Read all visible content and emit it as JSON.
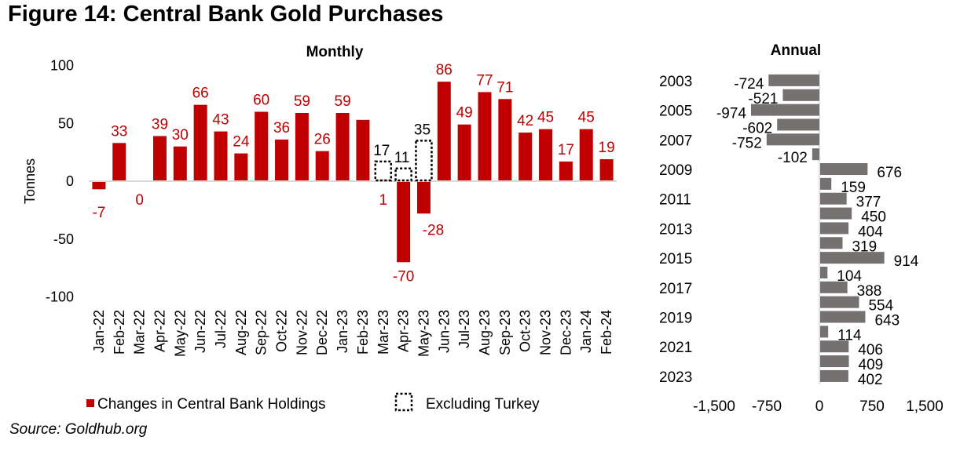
{
  "figure": {
    "title": "Figure 14: Central Bank Gold Purchases",
    "source": "Source: Goldhub.org"
  },
  "chart_data": [
    {
      "type": "bar",
      "title": "Monthly",
      "ylabel": "Tonnes",
      "xlabel": "",
      "ylim": [
        -100,
        100
      ],
      "yticks": [
        100,
        50,
        0,
        -50,
        -100
      ],
      "ytick_labels": [
        "100",
        "50",
        "0",
        "-50",
        "-100"
      ],
      "grid": false,
      "legend_position": "bottom",
      "categories": [
        "Jan-22",
        "Feb-22",
        "Mar-22",
        "Apr-22",
        "May-22",
        "Jun-22",
        "Jul-22",
        "Aug-22",
        "Sep-22",
        "Oct-22",
        "Nov-22",
        "Dec-22",
        "Jan-23",
        "Feb-23",
        "Mar-23",
        "Apr-23",
        "May-23",
        "Jun-23",
        "Jul-23",
        "Aug-23",
        "Sep-23",
        "Oct-23",
        "Nov-23",
        "Dec-23",
        "Jan-24",
        "Feb-24"
      ],
      "series": [
        {
          "name": "Changes in Central Bank Holdings",
          "color": "#c00000",
          "style": "solid",
          "values": [
            -7,
            33,
            0,
            39,
            30,
            66,
            43,
            24,
            60,
            36,
            59,
            26,
            59,
            53,
            1,
            -70,
            -28,
            86,
            49,
            77,
            71,
            42,
            45,
            17,
            45,
            19
          ],
          "data_labels": [
            "-7",
            "33",
            "0",
            "39",
            "30",
            "66",
            "43",
            "24",
            "60",
            "36",
            "59",
            "26",
            "59",
            "",
            "1",
            "-70",
            "-28",
            "86",
            "49",
            "77",
            "71",
            "42",
            "45",
            "17",
            "45",
            "19"
          ]
        },
        {
          "name": "Excluding Turkey",
          "color": "#000000",
          "style": "dotted-outline",
          "values": [
            null,
            null,
            null,
            null,
            null,
            null,
            null,
            null,
            null,
            null,
            null,
            null,
            null,
            null,
            17,
            11,
            35,
            null,
            null,
            null,
            null,
            null,
            null,
            null,
            null,
            null
          ],
          "data_labels": [
            "",
            "",
            "",
            "",
            "",
            "",
            "",
            "",
            "",
            "",
            "",
            "",
            "",
            "",
            "17",
            "11",
            "35",
            "",
            "",
            "",
            "",
            "",
            "",
            "",
            "",
            ""
          ]
        }
      ]
    },
    {
      "type": "bar",
      "orientation": "horizontal",
      "title": "Annual",
      "xlabel": "",
      "ylabel": "",
      "xlim": [
        -1500,
        1500
      ],
      "xticks": [
        -1500,
        -750,
        0,
        750,
        1500
      ],
      "xtick_labels": [
        "-1,500",
        "-750",
        "0",
        "750",
        "1,500"
      ],
      "grid": false,
      "categories": [
        "2003",
        "2004",
        "2005",
        "2006",
        "2007",
        "2008",
        "2009",
        "2010",
        "2011",
        "2012",
        "2013",
        "2014",
        "2015",
        "2016",
        "2017",
        "2018",
        "2019",
        "2020",
        "2021",
        "2022",
        "2023"
      ],
      "category_labels_shown": [
        "2003",
        "",
        "2005",
        "",
        "2007",
        "",
        "2009",
        "",
        "2011",
        "",
        "2013",
        "",
        "2015",
        "",
        "2017",
        "",
        "2019",
        "",
        "2021",
        "",
        "2023"
      ],
      "series": [
        {
          "name": "Annual",
          "color": "#767171",
          "values": [
            -724,
            -521,
            -974,
            -602,
            -752,
            -102,
            676,
            159,
            377,
            450,
            404,
            319,
            914,
            104,
            388,
            554,
            643,
            114,
            406,
            409,
            402
          ],
          "data_labels": [
            "-724",
            "-521",
            "-974",
            "-602",
            "-752",
            "-102",
            "676",
            "159",
            "377",
            "450",
            "404",
            "319",
            "914",
            "104",
            "388",
            "554",
            "643",
            "114",
            "406",
            "409",
            "402"
          ]
        }
      ]
    }
  ]
}
